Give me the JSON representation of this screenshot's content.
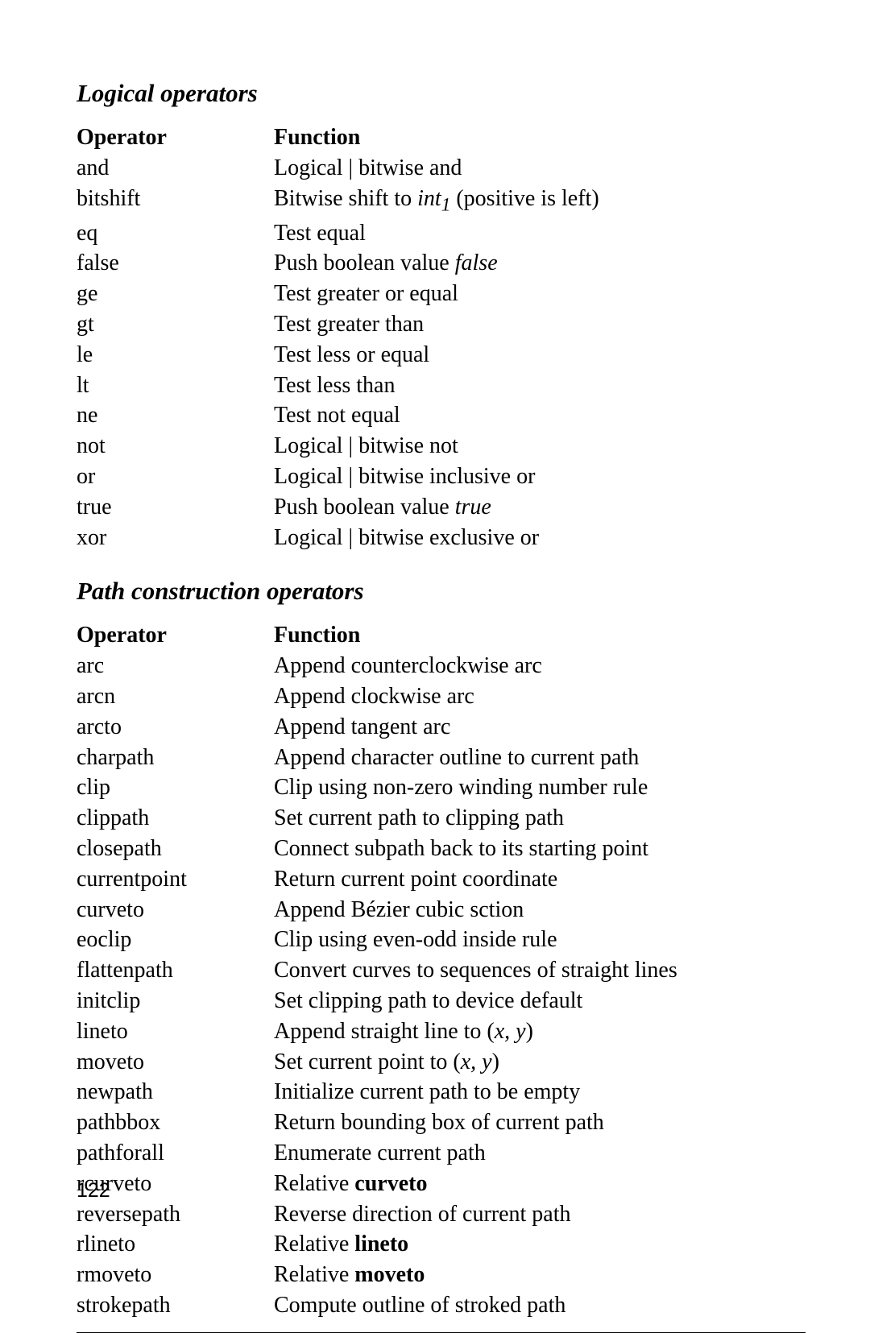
{
  "page": {
    "number": "122"
  },
  "sections": [
    {
      "heading": "Logical operators",
      "col1_header": "Operator",
      "col2_header": "Function",
      "rows": [
        {
          "op": "and",
          "fn": "Logical | bitwise and"
        },
        {
          "op": "bitshift",
          "fn_pre": "Bitwise shift to ",
          "fn_em": "int",
          "fn_sub": "1",
          "fn_post": " (positive is left)"
        },
        {
          "op": "eq",
          "fn": "Test equal"
        },
        {
          "op": "false",
          "fn_pre": "Push boolean value ",
          "fn_em": "false"
        },
        {
          "op": "ge",
          "fn": "Test greater or equal"
        },
        {
          "op": "gt",
          "fn": "Test greater than"
        },
        {
          "op": "le",
          "fn": "Test less or equal"
        },
        {
          "op": "lt",
          "fn": "Test less than"
        },
        {
          "op": "ne",
          "fn": "Test not equal"
        },
        {
          "op": "not",
          "fn": "Logical | bitwise not"
        },
        {
          "op": "or",
          "fn": "Logical | bitwise inclusive or"
        },
        {
          "op": "true",
          "fn_pre": "Push boolean value ",
          "fn_em": "true"
        },
        {
          "op": "xor",
          "fn": "Logical | bitwise exclusive or"
        }
      ]
    },
    {
      "heading": "Path construction operators",
      "col1_header": "Operator",
      "col2_header": "Function",
      "rows": [
        {
          "op": "arc",
          "fn": "Append counterclockwise arc"
        },
        {
          "op": "arcn",
          "fn": "Append clockwise arc"
        },
        {
          "op": "arcto",
          "fn": "Append tangent arc"
        },
        {
          "op": "charpath",
          "fn": "Append character outline to current path"
        },
        {
          "op": "clip",
          "fn": "Clip using non-zero winding number rule"
        },
        {
          "op": "clippath",
          "fn": "Set current path to clipping path"
        },
        {
          "op": "closepath",
          "fn": "Connect subpath back to its starting point"
        },
        {
          "op": "currentpoint",
          "fn": "Return current point coordinate"
        },
        {
          "op": "curveto",
          "fn": "Append Bézier cubic sction"
        },
        {
          "op": "eoclip",
          "fn": "Clip using even-odd inside rule"
        },
        {
          "op": "flattenpath",
          "fn": "Convert curves to sequences of straight lines"
        },
        {
          "op": "initclip",
          "fn": "Set clipping path to device default"
        },
        {
          "op": "lineto",
          "fn_pre": "Append straight line to (",
          "fn_em": "x, y",
          "fn_post": ")"
        },
        {
          "op": "moveto",
          "fn_pre": "Set current point to (",
          "fn_em": "x, y",
          "fn_post": ")"
        },
        {
          "op": "newpath",
          "fn": "Initialize current path to be empty"
        },
        {
          "op": "pathbbox",
          "fn": "Return bounding box of current path"
        },
        {
          "op": "pathforall",
          "fn": "Enumerate current path"
        },
        {
          "op": "rcurveto",
          "fn_pre": "Relative ",
          "fn_bold": "curveto"
        },
        {
          "op": "reversepath",
          "fn": "Reverse direction of current path"
        },
        {
          "op": "rlineto",
          "fn_pre": "Relative ",
          "fn_bold": "lineto"
        },
        {
          "op": "rmoveto",
          "fn_pre": "Relative ",
          "fn_bold": "moveto"
        },
        {
          "op": "strokepath",
          "fn": "Compute outline of stroked path"
        }
      ]
    }
  ]
}
